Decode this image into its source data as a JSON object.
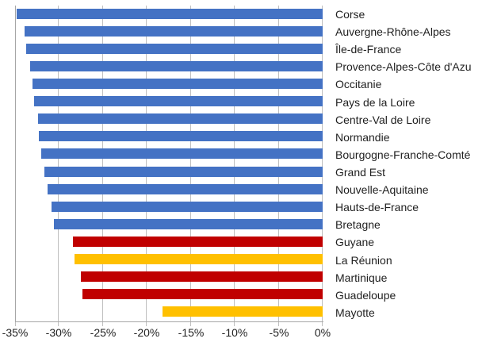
{
  "chart_data": {
    "type": "bar",
    "orientation": "horizontal",
    "grid": true,
    "legend": false,
    "xlim": [
      -35,
      0
    ],
    "unit": "%",
    "x_ticks": [
      "-35%",
      "-30%",
      "-25%",
      "-20%",
      "-15%",
      "-10%",
      "-5%",
      "0%"
    ],
    "categories": [
      "Corse",
      "Auvergne-Rhône-Alpes",
      "Île-de-France",
      "Provence-Alpes-Côte d'Azu",
      "Occitanie",
      "Pays de la Loire",
      "Centre-Val de Loire",
      "Normandie",
      "Bourgogne-Franche-Comté",
      "Grand Est",
      "Nouvelle-Aquitaine",
      "Hauts-de-France",
      "Bretagne",
      "Guyane",
      "La Réunion",
      "Martinique",
      "Guadeloupe",
      "Mayotte"
    ],
    "values": [
      -34.8,
      -33.9,
      -33.7,
      -33.3,
      -33.0,
      -32.8,
      -32.4,
      -32.3,
      -32.0,
      -31.7,
      -31.3,
      -30.9,
      -30.6,
      -28.4,
      -28.2,
      -27.5,
      -27.3,
      -18.2
    ],
    "bar_colors": [
      "#4472C4",
      "#4472C4",
      "#4472C4",
      "#4472C4",
      "#4472C4",
      "#4472C4",
      "#4472C4",
      "#4472C4",
      "#4472C4",
      "#4472C4",
      "#4472C4",
      "#4472C4",
      "#4472C4",
      "#C00000",
      "#FFC000",
      "#C00000",
      "#C00000",
      "#FFC000"
    ],
    "colors": {
      "metropole_blue": "#4472C4",
      "outremer_red": "#C00000",
      "outremer_orange": "#FFC000",
      "gridline": "#BFBFBF",
      "axis_line": "#A6A6A6",
      "text": "#1f1f1f"
    }
  }
}
